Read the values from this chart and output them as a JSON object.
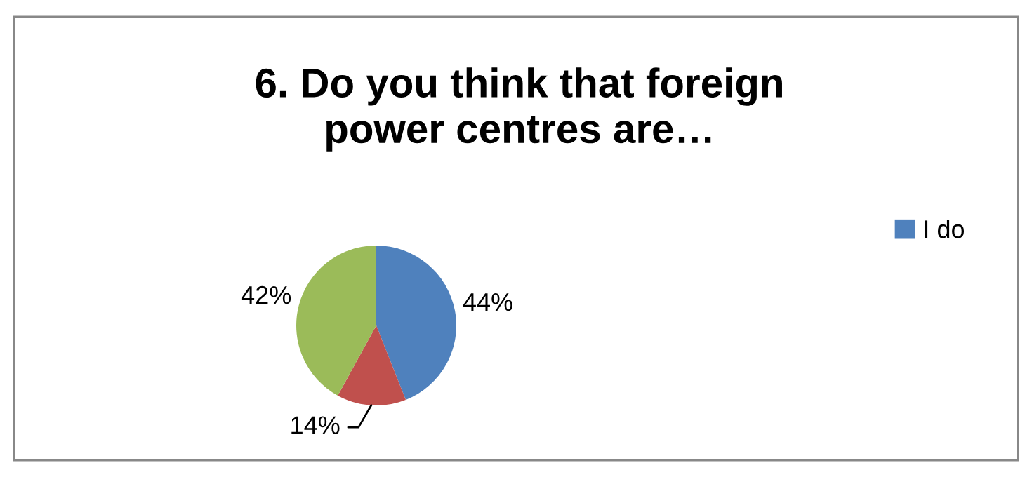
{
  "chart_data": {
    "type": "pie",
    "title": "6. Do you think that foreign\npower centres are…",
    "categories": [
      "I do",
      null,
      null
    ],
    "values": [
      44,
      14,
      42
    ],
    "colors": [
      "#4f81bd",
      "#c0504d",
      "#9bbb59"
    ],
    "value_labels": [
      "44%",
      "14%",
      "42%"
    ],
    "legend": "right"
  }
}
